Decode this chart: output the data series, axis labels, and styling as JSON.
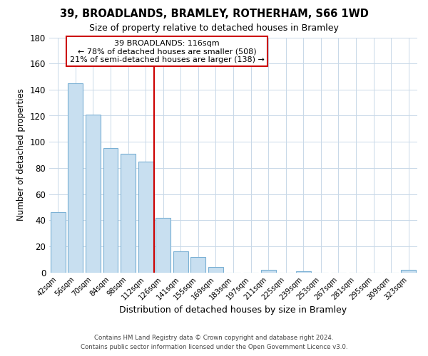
{
  "title": "39, BROADLANDS, BRAMLEY, ROTHERHAM, S66 1WD",
  "subtitle": "Size of property relative to detached houses in Bramley",
  "xlabel": "Distribution of detached houses by size in Bramley",
  "ylabel": "Number of detached properties",
  "bar_labels": [
    "42sqm",
    "56sqm",
    "70sqm",
    "84sqm",
    "98sqm",
    "112sqm",
    "126sqm",
    "141sqm",
    "155sqm",
    "169sqm",
    "183sqm",
    "197sqm",
    "211sqm",
    "225sqm",
    "239sqm",
    "253sqm",
    "267sqm",
    "281sqm",
    "295sqm",
    "309sqm",
    "323sqm"
  ],
  "bar_values": [
    46,
    145,
    121,
    95,
    91,
    85,
    42,
    16,
    12,
    4,
    0,
    0,
    2,
    0,
    1,
    0,
    0,
    0,
    0,
    0,
    2
  ],
  "bar_color": "#c8dff0",
  "bar_edge_color": "#7ab0d4",
  "vline_x": 5.5,
  "vline_color": "#cc0000",
  "annotation_title": "39 BROADLANDS: 116sqm",
  "annotation_line1": "← 78% of detached houses are smaller (508)",
  "annotation_line2": "21% of semi-detached houses are larger (138) →",
  "annotation_box_color": "#ffffff",
  "annotation_box_edge": "#cc0000",
  "ylim": [
    0,
    180
  ],
  "yticks": [
    0,
    20,
    40,
    60,
    80,
    100,
    120,
    140,
    160,
    180
  ],
  "footer_line1": "Contains HM Land Registry data © Crown copyright and database right 2024.",
  "footer_line2": "Contains public sector information licensed under the Open Government Licence v3.0.",
  "background_color": "#ffffff",
  "grid_color": "#c8d8e8"
}
